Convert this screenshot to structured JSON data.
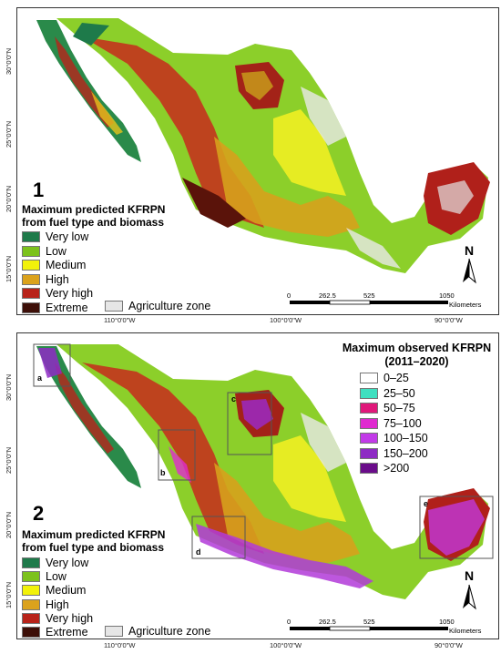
{
  "panel1": {
    "number": "1",
    "legend_title_line1": "Maximum predicted KFRPN",
    "legend_title_line2": "from fuel type and biomass",
    "classes": [
      {
        "label": "Very low",
        "color": "#1e7a4a"
      },
      {
        "label": "Low",
        "color": "#7cc21c"
      },
      {
        "label": "Medium",
        "color": "#f2f20a"
      },
      {
        "label": "High",
        "color": "#dba21c"
      },
      {
        "label": "Very high",
        "color": "#b8231a"
      },
      {
        "label": "Extreme",
        "color": "#3d0f08"
      }
    ],
    "agriculture_label": "Agriculture zone",
    "agriculture_color": "#e6e6e6",
    "lon_ticks": [
      "110°0'0\"W",
      "100°0'0\"W",
      "90°0'0\"W"
    ],
    "lat_ticks": [
      "30°0'0\"N",
      "25°0'0\"N",
      "20°0'0\"N",
      "15°0'0\"N"
    ],
    "scale_ticks": [
      "0",
      "262.5",
      "525",
      "1050"
    ],
    "scale_unit": "Kilometers",
    "north": "N"
  },
  "panel2": {
    "number": "2",
    "legend_title_line1": "Maximum predicted KFRPN",
    "legend_title_line2": "from fuel type and biomass",
    "classes": [
      {
        "label": "Very low",
        "color": "#1e7a4a"
      },
      {
        "label": "Low",
        "color": "#7cc21c"
      },
      {
        "label": "Medium",
        "color": "#f2f20a"
      },
      {
        "label": "High",
        "color": "#dba21c"
      },
      {
        "label": "Very high",
        "color": "#b8231a"
      },
      {
        "label": "Extreme",
        "color": "#3d0f08"
      }
    ],
    "agriculture_label": "Agriculture zone",
    "agriculture_color": "#e6e6e6",
    "observed_title_line1": "Maximum observed KFRPN",
    "observed_title_line2": "(2011–2020)",
    "observed_classes": [
      {
        "label": "0–25",
        "color": "#ffffff"
      },
      {
        "label": "25–50",
        "color": "#3fe0c0"
      },
      {
        "label": "50–75",
        "color": "#e0187a"
      },
      {
        "label": "75–100",
        "color": "#e02ad0"
      },
      {
        "label": "100–150",
        "color": "#c23ae8"
      },
      {
        "label": "150–200",
        "color": "#8e2ac4"
      },
      {
        "label": ">200",
        "color": "#6a0c8a"
      }
    ],
    "boxes": [
      "a",
      "b",
      "c",
      "d",
      "e"
    ],
    "lon_ticks": [
      "110°0'0\"W",
      "100°0'0\"W",
      "90°0'0\"W"
    ],
    "lat_ticks": [
      "30°0'0\"N",
      "25°0'0\"N",
      "20°0'0\"N",
      "15°0'0\"N"
    ],
    "scale_ticks": [
      "0",
      "262.5",
      "525",
      "1050"
    ],
    "scale_unit": "Kilometers",
    "north": "N"
  }
}
